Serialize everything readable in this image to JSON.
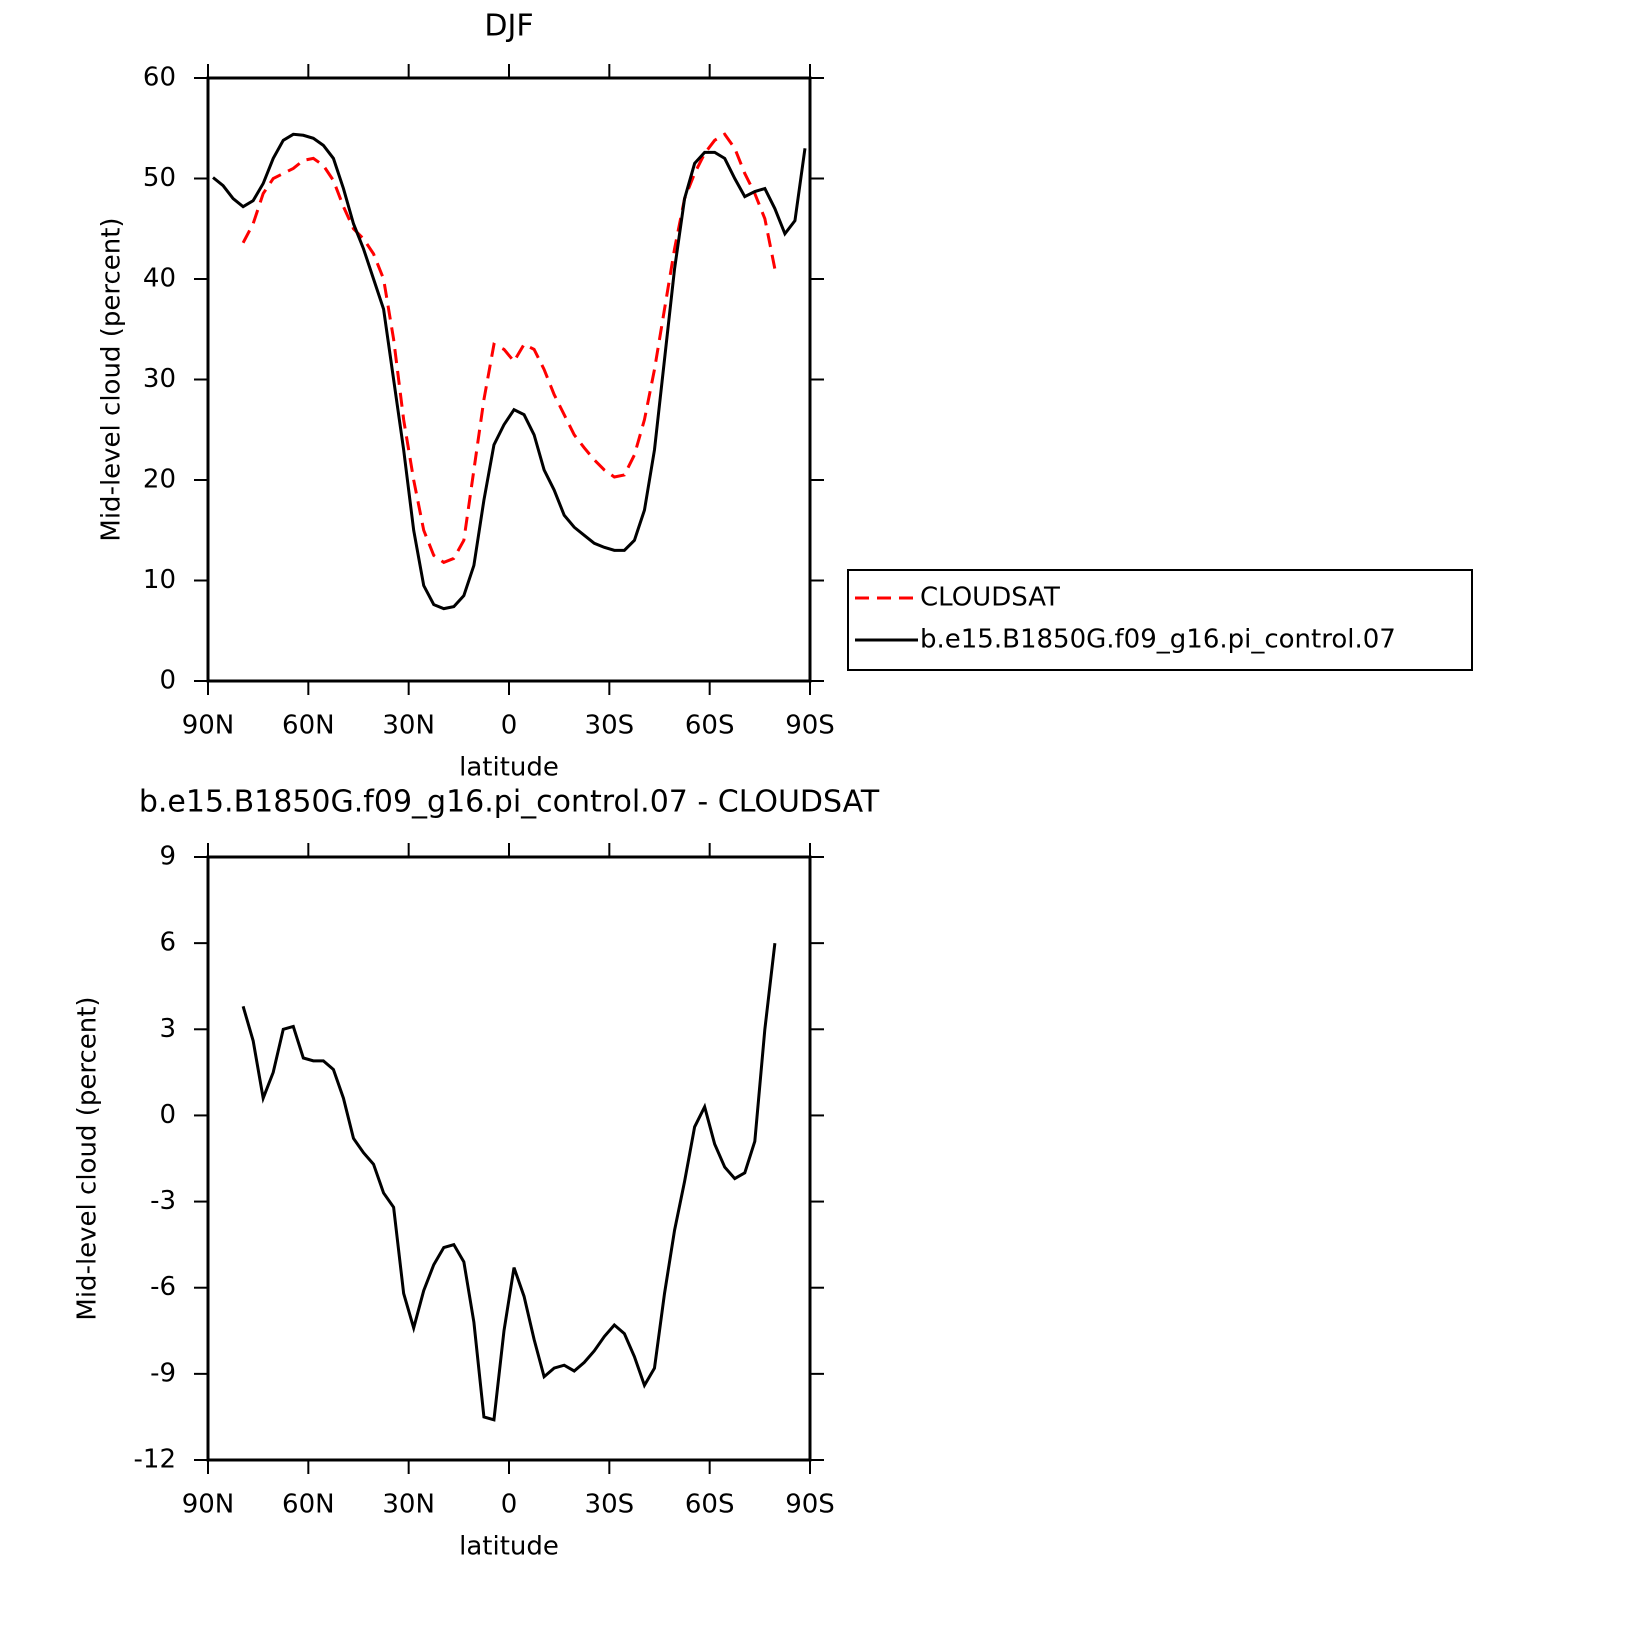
{
  "chart_data": [
    {
      "type": "line",
      "title": "DJF",
      "x_label": "latitude",
      "y_label": "Mid-level cloud (percent)",
      "x": [
        88.5,
        85.5,
        82.5,
        79.5,
        76.5,
        73.5,
        70.5,
        67.5,
        64.5,
        61.5,
        58.5,
        55.5,
        52.5,
        49.5,
        46.5,
        43.5,
        40.5,
        37.5,
        34.5,
        31.5,
        28.5,
        25.5,
        22.5,
        19.5,
        16.5,
        13.5,
        10.5,
        7.5,
        4.5,
        1.5,
        -1.5,
        -4.5,
        -7.5,
        -10.5,
        -13.5,
        -16.5,
        -19.5,
        -22.5,
        -25.5,
        -28.5,
        -31.5,
        -34.5,
        -37.5,
        -40.5,
        -43.5,
        -46.5,
        -49.5,
        -52.5,
        -55.5,
        -58.5,
        -61.5,
        -64.5,
        -67.5,
        -70.5,
        -73.5,
        -76.5,
        -79.5,
        -82.5,
        -85.5,
        -88.5
      ],
      "series": [
        {
          "name": "CLOUDSAT",
          "color": "#ff0000",
          "dashed": true,
          "values": [
            null,
            null,
            null,
            43.6,
            45.5,
            48.5,
            50,
            50.5,
            51,
            51.8,
            52,
            51.3,
            49.8,
            47.2,
            45,
            44,
            42.5,
            40,
            34,
            26,
            20,
            15,
            12.5,
            11.8,
            12.2,
            14,
            21,
            28,
            33.5,
            33,
            31.8,
            33.5,
            33,
            31,
            28.5,
            26.5,
            24.5,
            23.2,
            22,
            21,
            20.3,
            20.5,
            22.5,
            26,
            31,
            37,
            43,
            48,
            50.5,
            52.5,
            53.8,
            54.4,
            53,
            50.5,
            48.5,
            46,
            41,
            null,
            null,
            null
          ]
        },
        {
          "name": "b.e15.B1850G.f09_g16.pi_control.07",
          "color": "#000000",
          "dashed": false,
          "values": [
            50.1,
            49.3,
            48,
            47.2,
            47.8,
            49.5,
            52,
            53.8,
            54.4,
            54.3,
            54,
            53.3,
            52,
            49,
            45.5,
            43,
            40,
            37,
            30,
            23,
            15,
            9.5,
            7.6,
            7.2,
            7.4,
            8.5,
            11.5,
            18,
            23.5,
            25.5,
            27,
            26.5,
            24.5,
            21,
            19,
            16.5,
            15.3,
            14.5,
            13.7,
            13.3,
            13,
            13,
            14,
            17,
            23,
            32,
            41,
            48,
            51.5,
            52.6,
            52.6,
            52,
            50,
            48.2,
            48.7,
            49,
            47,
            44.5,
            45.8,
            53
          ]
        }
      ],
      "xlim": [
        90,
        -90
      ],
      "xticks": [
        {
          "value": 90,
          "label": "90N"
        },
        {
          "value": 60,
          "label": "60N"
        },
        {
          "value": 30,
          "label": "30N"
        },
        0,
        {
          "value": -30,
          "label": "30S"
        },
        {
          "value": -60,
          "label": "60S"
        },
        {
          "value": -90,
          "label": "90S"
        }
      ],
      "ylim": [
        0,
        60
      ],
      "yticks": [
        0,
        10,
        20,
        30,
        40,
        50,
        60
      ],
      "legend": "right"
    },
    {
      "type": "line",
      "title": "b.e15.B1850G.f09_g16.pi_control.07 - CLOUDSAT",
      "x_label": "latitude",
      "y_label": "Mid-level cloud (percent)",
      "x": [
        88.5,
        85.5,
        82.5,
        79.5,
        76.5,
        73.5,
        70.5,
        67.5,
        64.5,
        61.5,
        58.5,
        55.5,
        52.5,
        49.5,
        46.5,
        43.5,
        40.5,
        37.5,
        34.5,
        31.5,
        28.5,
        25.5,
        22.5,
        19.5,
        16.5,
        13.5,
        10.5,
        7.5,
        4.5,
        1.5,
        -1.5,
        -4.5,
        -7.5,
        -10.5,
        -13.5,
        -16.5,
        -19.5,
        -22.5,
        -25.5,
        -28.5,
        -31.5,
        -34.5,
        -37.5,
        -40.5,
        -43.5,
        -46.5,
        -49.5,
        -52.5,
        -55.5,
        -58.5,
        -61.5,
        -64.5,
        -67.5,
        -70.5,
        -73.5,
        -76.5,
        -79.5,
        -82.5,
        -85.5,
        -88.5
      ],
      "values": [
        null,
        null,
        null,
        3.8,
        2.6,
        0.6,
        1.5,
        3.0,
        3.1,
        2.0,
        1.9,
        1.9,
        1.6,
        0.6,
        -0.8,
        -1.3,
        -1.7,
        -2.7,
        -3.2,
        -6.2,
        -7.4,
        -6.1,
        -5.2,
        -4.6,
        -4.5,
        -5.1,
        -7.2,
        -10.5,
        -10.6,
        -7.5,
        -5.3,
        -6.3,
        -7.8,
        -9.1,
        -8.8,
        -8.7,
        -8.9,
        -8.6,
        -8.2,
        -7.7,
        -7.3,
        -7.6,
        -8.4,
        -9.4,
        -8.8,
        -6.2,
        -4.0,
        -2.3,
        -0.4,
        0.3,
        -1.0,
        -1.8,
        -2.2,
        -2.0,
        -0.9,
        3.0,
        6.0,
        null,
        null,
        null
      ],
      "color": "#000000",
      "xlim": [
        90,
        -90
      ],
      "xticks": [
        {
          "value": 90,
          "label": "90N"
        },
        {
          "value": 60,
          "label": "60N"
        },
        {
          "value": 30,
          "label": "30N"
        },
        0,
        {
          "value": -30,
          "label": "30S"
        },
        {
          "value": -60,
          "label": "60S"
        },
        {
          "value": -90,
          "label": "90S"
        }
      ],
      "ylim": [
        -12,
        9
      ],
      "yticks": [
        -12,
        -9,
        -6,
        -3,
        0,
        3,
        6,
        9
      ]
    }
  ]
}
